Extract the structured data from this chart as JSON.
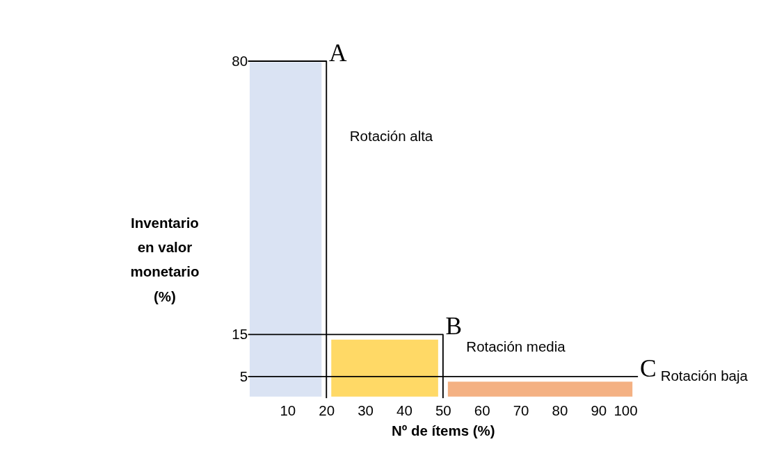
{
  "chart_data": {
    "type": "area",
    "xlabel": "Nº de ítems (%)",
    "ylabel": "Inventario en valor monetario (%)",
    "xlim": [
      0,
      100
    ],
    "xticks": [
      10,
      20,
      30,
      40,
      50,
      60,
      70,
      80,
      90,
      100
    ],
    "ylim": [
      0,
      80
    ],
    "yticks": [
      5,
      15,
      80
    ],
    "series": [
      {
        "color": "#dae3f3",
        "x": [
          0,
          19
        ],
        "values": [
          80,
          80
        ]
      },
      {
        "color": "#ffd966",
        "x": [
          21,
          49
        ],
        "values": [
          14,
          14
        ]
      },
      {
        "color": "#f4b183",
        "x": [
          51,
          99
        ],
        "values": [
          4,
          4
        ]
      },
      {
        "type": "line",
        "color": "#000000",
        "x": [
          0,
          20,
          20
        ],
        "values": [
          80,
          80,
          0
        ]
      },
      {
        "type": "line",
        "color": "#000000",
        "x": [
          0,
          50,
          50
        ],
        "values": [
          15,
          15,
          0
        ]
      },
      {
        "type": "line",
        "color": "#000000",
        "x": [
          0,
          100
        ],
        "values": [
          5,
          5
        ]
      }
    ],
    "annotations": [
      {
        "text": "A",
        "x": 20,
        "y": 80
      },
      {
        "text": "Rotación alta",
        "x": 20,
        "y": 62
      },
      {
        "text": "B",
        "x": 50,
        "y": 15
      },
      {
        "text": "Rotación media",
        "x": 50,
        "y": 12
      },
      {
        "text": "C",
        "x": 100,
        "y": 5
      },
      {
        "text": "Rotación baja",
        "x": 100,
        "y": 5
      }
    ]
  }
}
